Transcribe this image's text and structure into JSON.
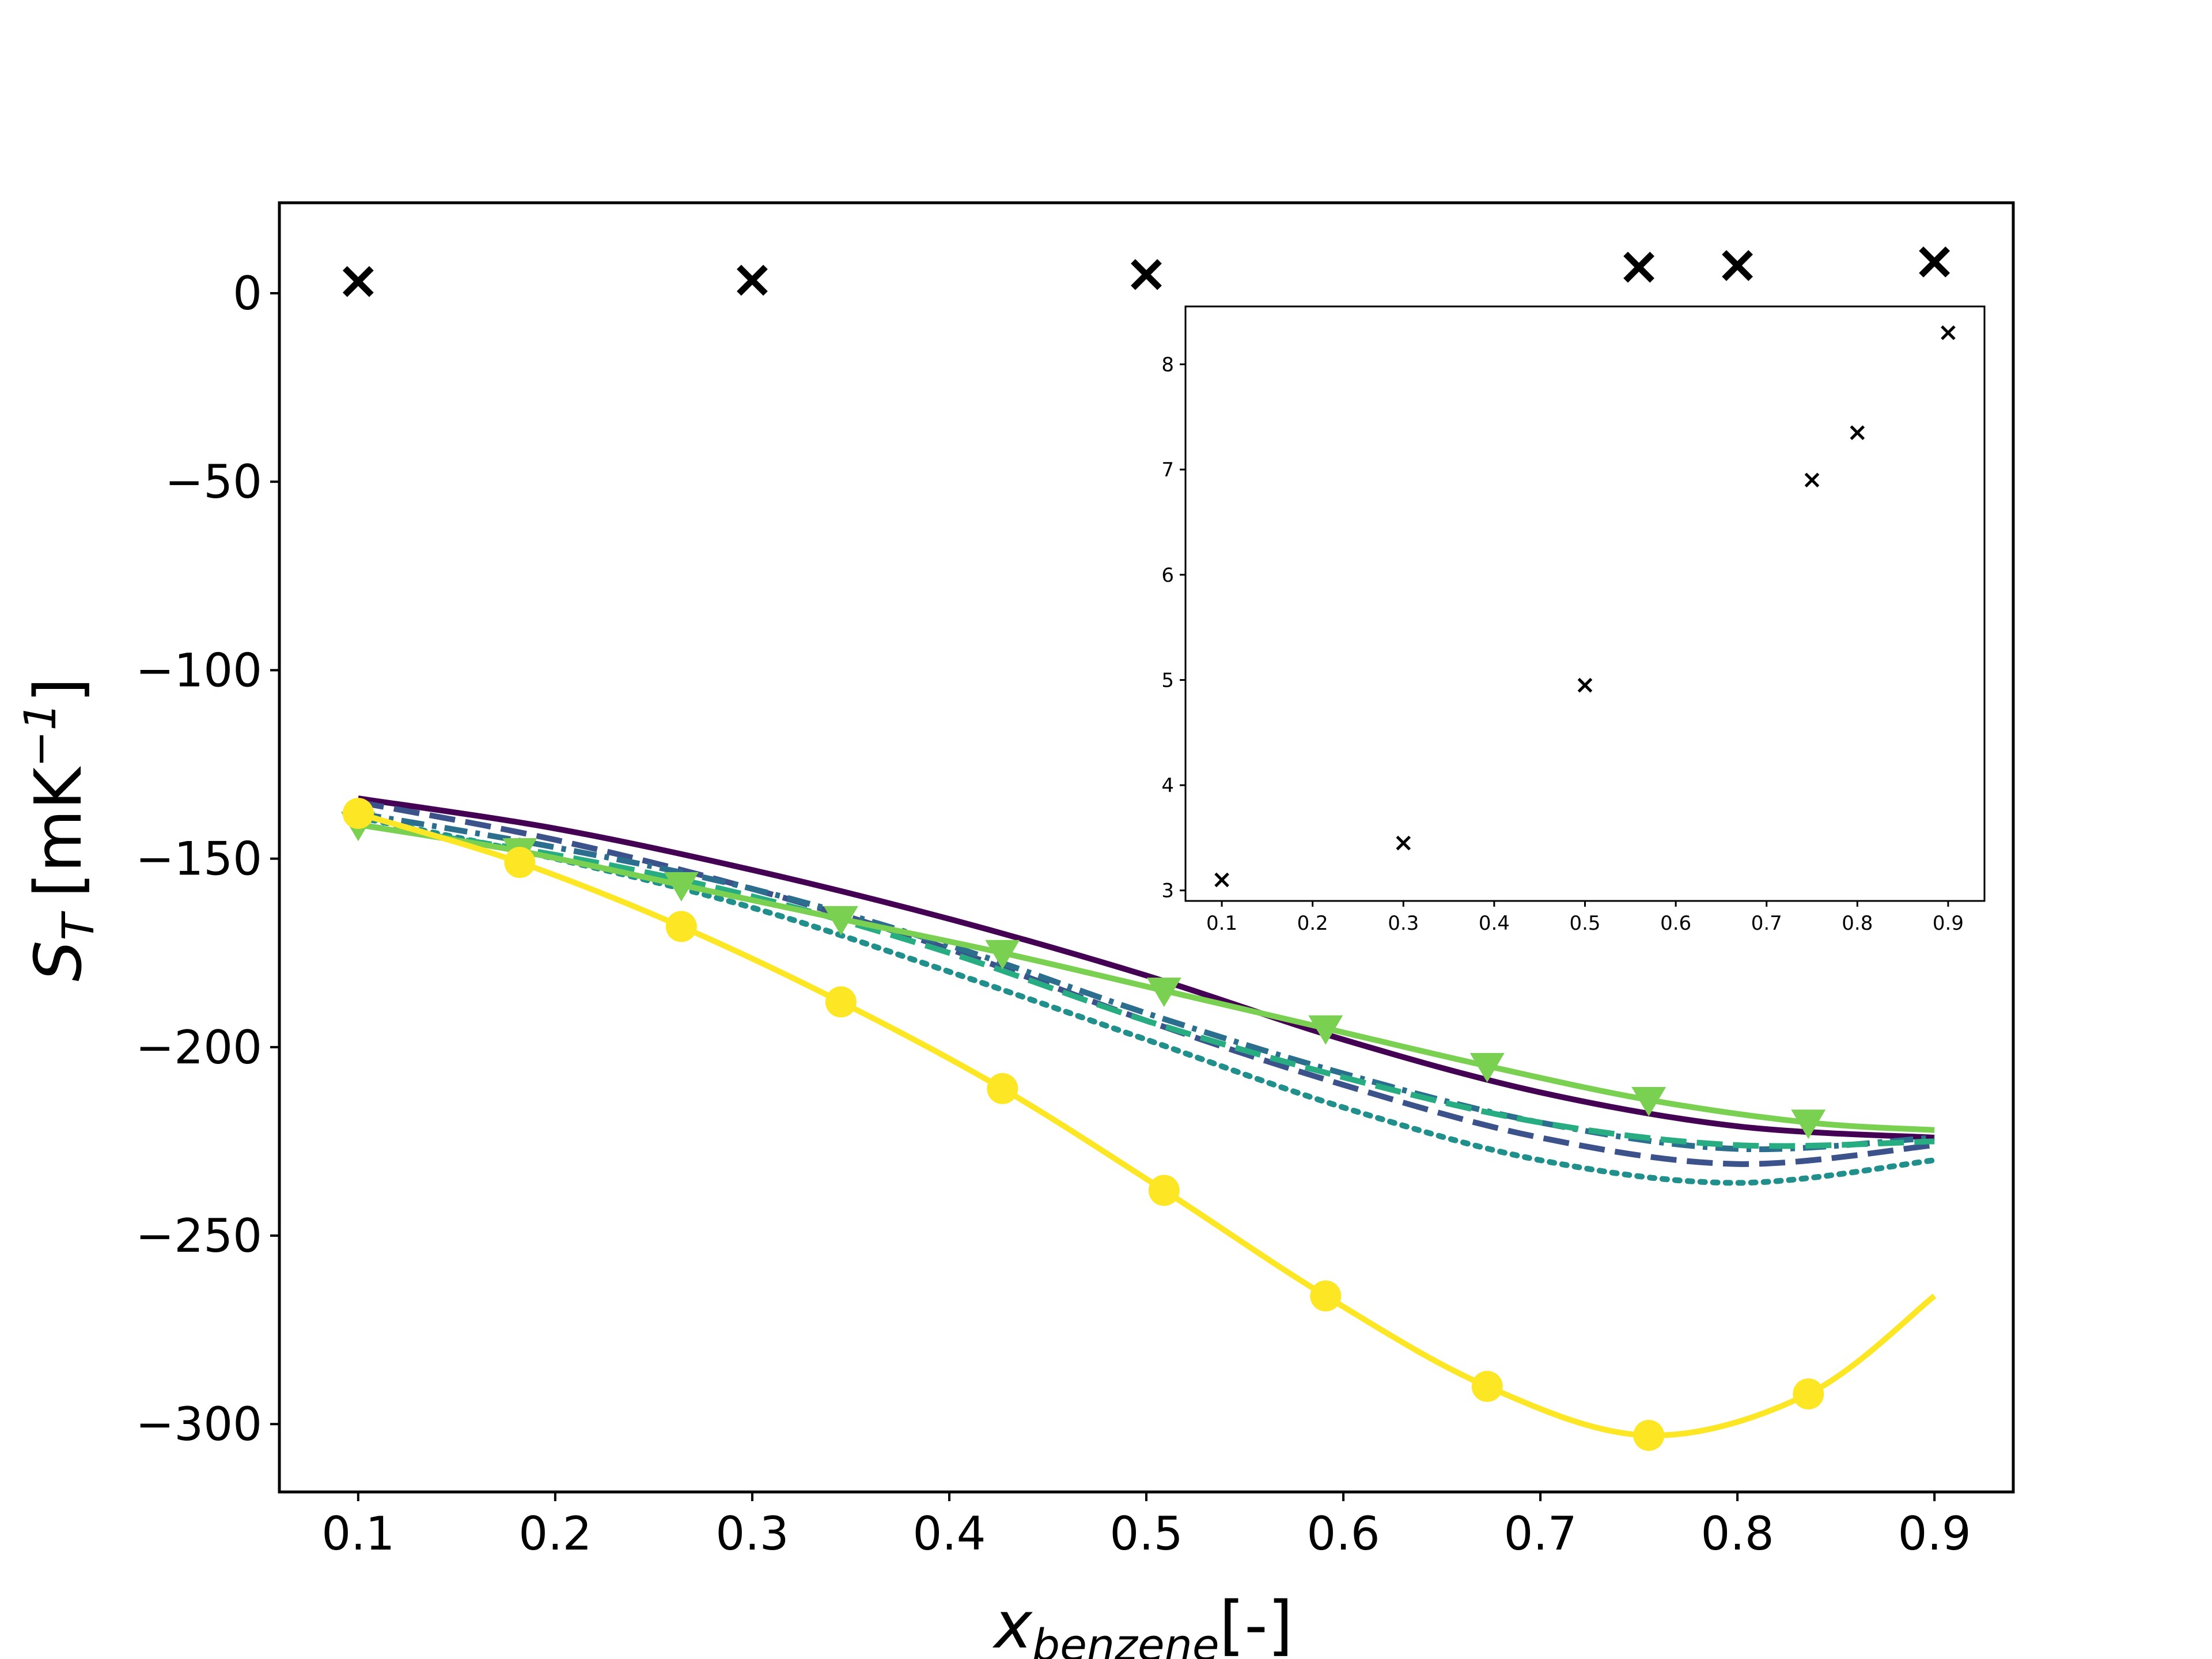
{
  "chart_data": [
    {
      "type": "line",
      "xlim": [
        0.06,
        0.94
      ],
      "ylim": [
        -318,
        24
      ],
      "xticks": [
        "0.1",
        "0.2",
        "0.3",
        "0.4",
        "0.5",
        "0.6",
        "0.7",
        "0.8",
        "0.9"
      ],
      "yticks": [
        "0",
        "−50",
        "−100",
        "−150",
        "−200",
        "−250",
        "−300"
      ],
      "xlabel_main": "x",
      "xlabel_sub": "benzene",
      "xlabel_suffix": "[-]",
      "ylabel_main": "S",
      "ylabel_sub": "T",
      "ylabel_suffix": "[mK",
      "ylabel_exp": "−1",
      "ylabel_close": "]",
      "grid": false,
      "legend": "none",
      "experimental_points": {
        "marker": "x",
        "color": "#000000",
        "x": [
          0.1,
          0.3,
          0.5,
          0.75,
          0.8,
          0.9
        ],
        "y": [
          3.1,
          3.45,
          4.95,
          6.9,
          7.35,
          8.3
        ]
      },
      "series": [
        {
          "color": "#440154",
          "style": "solid",
          "marker": "none",
          "x": [
            0.1,
            0.2,
            0.3,
            0.4,
            0.5,
            0.6,
            0.7,
            0.8,
            0.9
          ],
          "y": [
            -134,
            -142,
            -153,
            -166,
            -181,
            -198,
            -212,
            -221,
            -224
          ]
        },
        {
          "color": "#3b528b",
          "style": "dashed",
          "marker": "none",
          "x": [
            0.1,
            0.2,
            0.3,
            0.4,
            0.5,
            0.6,
            0.7,
            0.8,
            0.9
          ],
          "y": [
            -135,
            -145,
            -158,
            -174,
            -193,
            -210,
            -224,
            -231,
            -226
          ]
        },
        {
          "color": "#2c6e8e",
          "style": "dashdot",
          "marker": "none",
          "x": [
            0.1,
            0.2,
            0.3,
            0.4,
            0.5,
            0.6,
            0.7,
            0.8,
            0.9
          ],
          "y": [
            -138,
            -147,
            -158,
            -173,
            -191,
            -207,
            -220,
            -227,
            -224
          ]
        },
        {
          "color": "#21908c",
          "style": "dotted",
          "marker": "none",
          "x": [
            0.1,
            0.2,
            0.3,
            0.4,
            0.5,
            0.6,
            0.7,
            0.8,
            0.9
          ],
          "y": [
            -139,
            -150,
            -163,
            -180,
            -198,
            -216,
            -230,
            -236,
            -230
          ]
        },
        {
          "color": "#27ad81",
          "style": "dashed",
          "marker": "none",
          "x": [
            0.1,
            0.2,
            0.3,
            0.4,
            0.5,
            0.6,
            0.7,
            0.8,
            0.9
          ],
          "y": [
            -141,
            -149,
            -160,
            -175,
            -193,
            -208,
            -220,
            -226,
            -225
          ]
        },
        {
          "color": "#7ad151",
          "style": "solid",
          "marker": "triangle-down",
          "x": [
            0.1,
            0.182,
            0.264,
            0.345,
            0.427,
            0.509,
            0.591,
            0.673,
            0.755,
            0.836,
            0.9
          ],
          "y": [
            -141,
            -148,
            -157,
            -166,
            -175,
            -185,
            -195,
            -205,
            -214,
            -220,
            -222
          ]
        },
        {
          "color": "#fde725",
          "style": "solid",
          "marker": "circle",
          "x": [
            0.1,
            0.182,
            0.264,
            0.345,
            0.427,
            0.509,
            0.591,
            0.673,
            0.755,
            0.836,
            0.9
          ],
          "y": [
            -138,
            -151,
            -168,
            -188,
            -211,
            -238,
            -266,
            -290,
            -303,
            -292,
            -266
          ]
        }
      ]
    },
    {
      "type": "scatter",
      "inset": true,
      "xlim": [
        0.06,
        0.94
      ],
      "ylim": [
        2.9,
        8.55
      ],
      "xticks": [
        "0.1",
        "0.2",
        "0.3",
        "0.4",
        "0.5",
        "0.6",
        "0.7",
        "0.8",
        "0.9"
      ],
      "yticks": [
        "3",
        "4",
        "5",
        "6",
        "7",
        "8"
      ],
      "marker": "x",
      "color": "#000000",
      "x": [
        0.1,
        0.3,
        0.5,
        0.75,
        0.8,
        0.9
      ],
      "y": [
        3.1,
        3.45,
        4.95,
        6.9,
        7.35,
        8.3
      ]
    }
  ]
}
